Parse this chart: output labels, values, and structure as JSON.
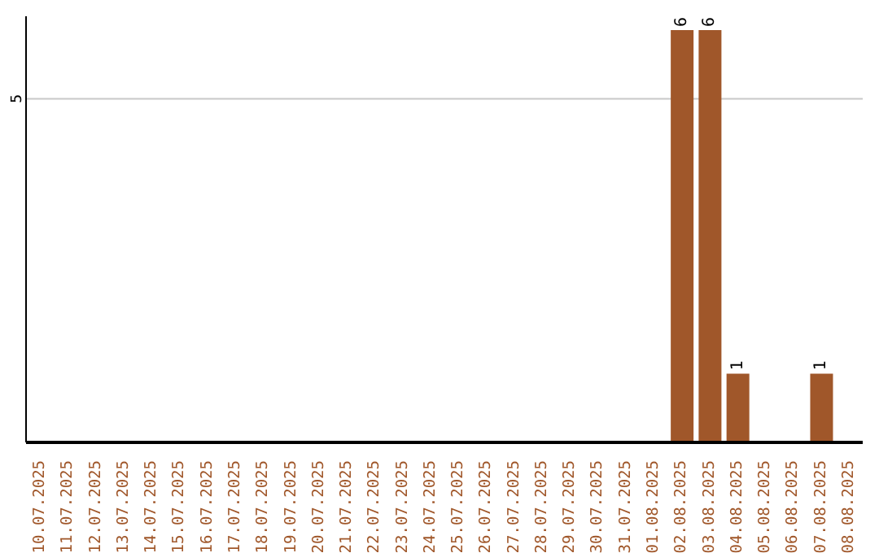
{
  "chart_data": {
    "type": "bar",
    "categories": [
      "10.07.2025",
      "11.07.2025",
      "12.07.2025",
      "13.07.2025",
      "14.07.2025",
      "15.07.2025",
      "16.07.2025",
      "17.07.2025",
      "18.07.2025",
      "19.07.2025",
      "20.07.2025",
      "21.07.2025",
      "22.07.2025",
      "23.07.2025",
      "24.07.2025",
      "25.07.2025",
      "26.07.2025",
      "27.07.2025",
      "28.07.2025",
      "29.07.2025",
      "30.07.2025",
      "31.07.2025",
      "01.08.2025",
      "02.08.2025",
      "03.08.2025",
      "04.08.2025",
      "05.08.2025",
      "06.08.2025",
      "07.08.2025",
      "08.08.2025"
    ],
    "values": [
      null,
      null,
      null,
      null,
      null,
      null,
      null,
      null,
      null,
      null,
      null,
      null,
      null,
      null,
      null,
      null,
      null,
      null,
      null,
      null,
      null,
      null,
      null,
      6,
      6,
      1,
      null,
      null,
      1,
      null
    ],
    "color": "#a0572a",
    "ylim": [
      0,
      6.2
    ],
    "yticks": [
      5
    ],
    "grid": "y",
    "data_labels": true,
    "legend": false
  }
}
